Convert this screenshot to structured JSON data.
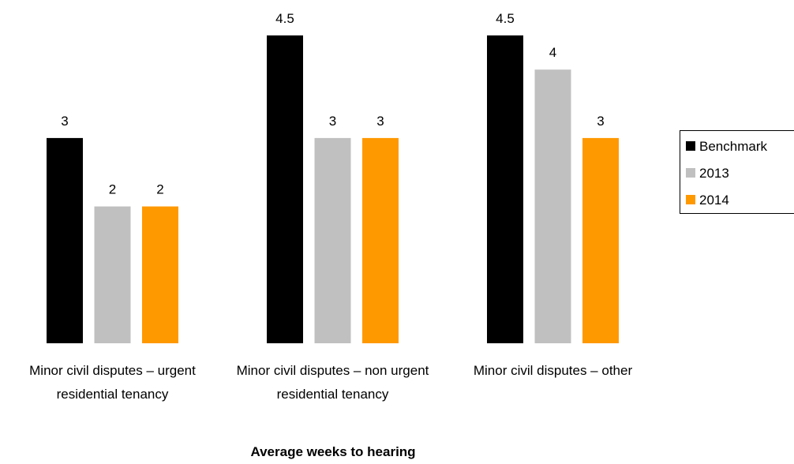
{
  "chart_data": {
    "type": "bar",
    "x_label": "Average weeks to hearing",
    "categories": [
      "Minor civil disputes – urgent residential tenancy",
      "Minor civil disputes – non urgent residential tenancy",
      "Minor civil disputes – other"
    ],
    "series": [
      {
        "name": "Benchmark",
        "color": "#000000",
        "values": [
          3,
          4.5,
          4.5
        ]
      },
      {
        "name": "2013",
        "color": "#c0c0c0",
        "values": [
          2,
          3,
          4
        ]
      },
      {
        "name": "2014",
        "color": "#ff9900",
        "values": [
          2,
          3,
          3
        ]
      }
    ],
    "ylim": [
      0,
      5
    ],
    "legend": "right"
  }
}
